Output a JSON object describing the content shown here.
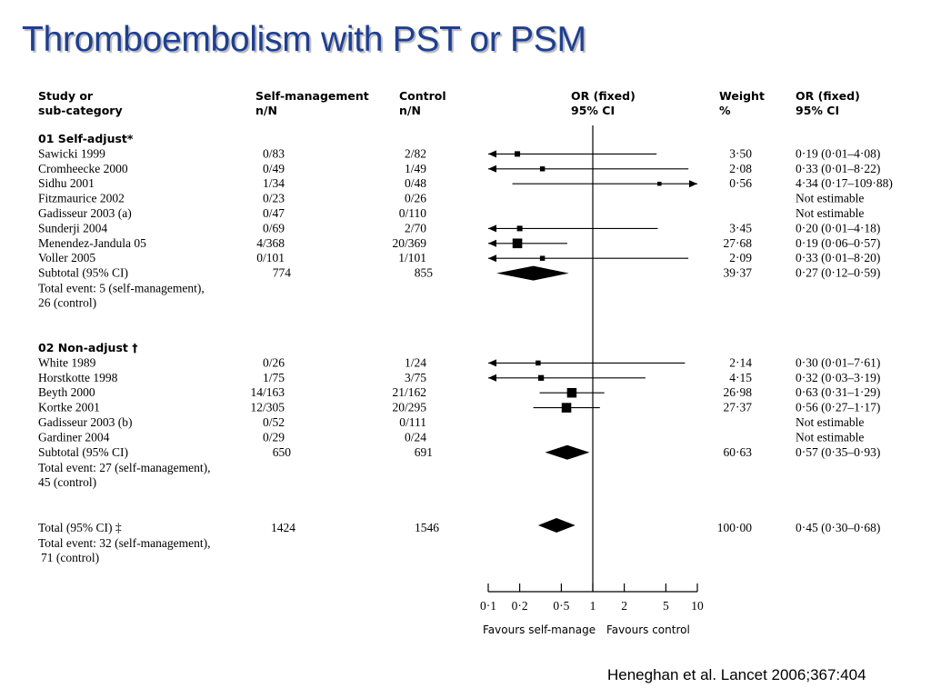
{
  "slide": {
    "title": "Thromboembolism with PST or PSM",
    "citation": "Heneghan et al. Lancet 2006;367:404"
  },
  "table": {
    "headers": {
      "study_l1": "Study or",
      "study_l2": "sub-category",
      "sm_l1": "Self-management",
      "sm_l2": "n/N",
      "ctl_l1": "Control",
      "ctl_l2": "n/N",
      "or_l1": "OR (fixed)",
      "or_l2": "95% CI",
      "wt_l1": "Weight",
      "wt_l2": "%",
      "ci_l1": "OR (fixed)",
      "ci_l2": "95% CI"
    },
    "sections": [
      {
        "title": "01 Self-adjust*",
        "studies": [
          {
            "name": "Sawicki 1999",
            "sm": "0/83",
            "ctl": "2/82",
            "weight": "3·50",
            "ci": "0·19 (0·01–4·08)"
          },
          {
            "name": "Cromheecke 2000",
            "sm": "0/49",
            "ctl": "1/49",
            "weight": "2·08",
            "ci": "0·33  (0·01–8·22)"
          },
          {
            "name": "Sidhu 2001",
            "sm": "1/34",
            "ctl": "0/48",
            "weight": "0·56",
            "ci": "4·34 (0·17–109·88)"
          },
          {
            "name": "Fitzmaurice 2002",
            "sm": "0/23",
            "ctl": "0/26",
            "weight": "",
            "ci": "Not estimable"
          },
          {
            "name": "Gadisseur 2003 (a)",
            "sm": "0/47",
            "ctl": "0/110",
            "weight": "",
            "ci": "Not estimable"
          },
          {
            "name": "Sunderji 2004",
            "sm": "0/69",
            "ctl": "2/70",
            "weight": "3·45",
            "ci": "0·20 (0·01–4·18)"
          },
          {
            "name": "Menendez-Jandula 05",
            "sm": "4/368",
            "ctl": "20/369",
            "weight": "27·68",
            "ci": "0·19 (0·06–0·57)"
          },
          {
            "name": "Voller 2005",
            "sm": "0/101",
            "ctl": "1/101",
            "weight": "2·09",
            "ci": "0·33 (0·01–8·20)"
          }
        ],
        "subtotal": {
          "label": "Subtotal (95% CI)",
          "sm": "774",
          "ctl": "855",
          "weight": "39·37",
          "ci": "0·27 (0·12–0·59)"
        },
        "events_l1": "Total event: 5 (self-management),",
        "events_l2": "26 (control)"
      },
      {
        "title": "02 Non-adjust †",
        "studies": [
          {
            "name": "White 1989",
            "sm": "0/26",
            "ctl": "1/24",
            "weight": "2·14",
            "ci": "0·30 (0·01–7·61)"
          },
          {
            "name": "Horstkotte 1998",
            "sm": "1/75",
            "ctl": "3/75",
            "weight": "4·15",
            "ci": "0·32  (0·03–3·19)"
          },
          {
            "name": "Beyth 2000",
            "sm": "14/163",
            "ctl": "21/162",
            "weight": "26·98",
            "ci": "0·63 (0·31–1·29)"
          },
          {
            "name": "Kortke 2001",
            "sm": "12/305",
            "ctl": "20/295",
            "weight": "27·37",
            "ci": "0·56 (0·27–1·17)"
          },
          {
            "name": "Gadisseur 2003 (b)",
            "sm": "0/52",
            "ctl": "0/111",
            "weight": "",
            "ci": "Not estimable"
          },
          {
            "name": "Gardiner 2004",
            "sm": "0/29",
            "ctl": "0/24",
            "weight": "",
            "ci": "Not estimable"
          }
        ],
        "subtotal": {
          "label": "Subtotal (95% CI)",
          "sm": "650",
          "ctl": "691",
          "weight": "60·63",
          "ci": "0·57 (0·35–0·93)"
        },
        "events_l1": "Total event: 27 (self-management),",
        "events_l2": "45 (control)"
      }
    ],
    "total": {
      "label": "Total (95% CI) ‡",
      "sm": "1424",
      "ctl": "1546",
      "weight": "100·00",
      "ci": "0·45 (0·30–0·68)",
      "events_l1": "Total event: 32 (self-management),",
      "events_l2": "71 (control)"
    }
  },
  "chart_data": {
    "type": "forest",
    "x_scale": "log",
    "xlim": [
      0.1,
      10
    ],
    "null_value": 1,
    "ticks": [
      0.1,
      0.2,
      0.5,
      1,
      2,
      5,
      10
    ],
    "tick_labels": [
      "0·1",
      "0·2",
      "0·5",
      "1",
      "2",
      "5",
      "10"
    ],
    "favours_left": "Favours self-manage",
    "favours_right": "Favours control",
    "studies": [
      {
        "name": "Sawicki 1999",
        "or": 0.19,
        "lo": 0.01,
        "hi": 4.08,
        "weight": 3.5
      },
      {
        "name": "Cromheecke 2000",
        "or": 0.33,
        "lo": 0.01,
        "hi": 8.22,
        "weight": 2.08
      },
      {
        "name": "Sidhu 2001",
        "or": 4.34,
        "lo": 0.17,
        "hi": 109.88,
        "weight": 0.56
      },
      {
        "name": "Fitzmaurice 2002",
        "or": null
      },
      {
        "name": "Gadisseur 2003 (a)",
        "or": null
      },
      {
        "name": "Sunderji 2004",
        "or": 0.2,
        "lo": 0.01,
        "hi": 4.18,
        "weight": 3.45
      },
      {
        "name": "Menendez-Jandula 05",
        "or": 0.19,
        "lo": 0.06,
        "hi": 0.57,
        "weight": 27.68
      },
      {
        "name": "Voller 2005",
        "or": 0.33,
        "lo": 0.01,
        "hi": 8.2,
        "weight": 2.09
      },
      {
        "name": "Subtotal self-adjust",
        "or": 0.27,
        "lo": 0.12,
        "hi": 0.59,
        "weight": 39.37,
        "diamond": true
      },
      {
        "name": "White 1989",
        "or": 0.3,
        "lo": 0.01,
        "hi": 7.61,
        "weight": 2.14
      },
      {
        "name": "Horstkotte 1998",
        "or": 0.32,
        "lo": 0.03,
        "hi": 3.19,
        "weight": 4.15
      },
      {
        "name": "Beyth 2000",
        "or": 0.63,
        "lo": 0.31,
        "hi": 1.29,
        "weight": 26.98
      },
      {
        "name": "Kortke 2001",
        "or": 0.56,
        "lo": 0.27,
        "hi": 1.17,
        "weight": 27.37
      },
      {
        "name": "Gadisseur 2003 (b)",
        "or": null
      },
      {
        "name": "Gardiner 2004",
        "or": null
      },
      {
        "name": "Subtotal non-adjust",
        "or": 0.57,
        "lo": 0.35,
        "hi": 0.93,
        "weight": 60.63,
        "diamond": true
      },
      {
        "name": "Total",
        "or": 0.45,
        "lo": 0.3,
        "hi": 0.68,
        "weight": 100.0,
        "diamond": true
      }
    ]
  }
}
